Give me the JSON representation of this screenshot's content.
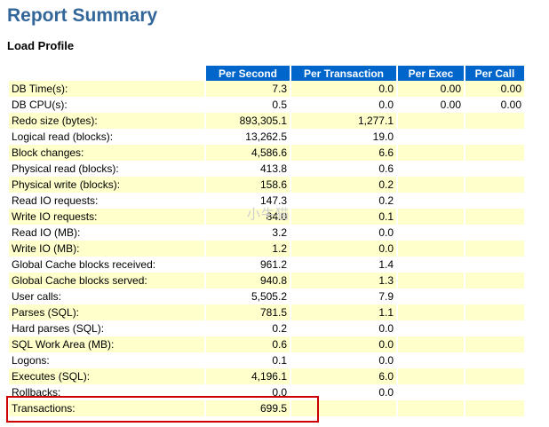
{
  "title": "Report Summary",
  "section": "Load Profile",
  "columns": [
    "Per Second",
    "Per Transaction",
    "Per Exec",
    "Per Call"
  ],
  "rows": [
    {
      "label": "DB Time(s):",
      "per_second": "7.3",
      "per_txn": "0.0",
      "per_exec": "0.00",
      "per_call": "0.00"
    },
    {
      "label": "DB CPU(s):",
      "per_second": "0.5",
      "per_txn": "0.0",
      "per_exec": "0.00",
      "per_call": "0.00"
    },
    {
      "label": "Redo size (bytes):",
      "per_second": "893,305.1",
      "per_txn": "1,277.1",
      "per_exec": "",
      "per_call": ""
    },
    {
      "label": "Logical read (blocks):",
      "per_second": "13,262.5",
      "per_txn": "19.0",
      "per_exec": "",
      "per_call": ""
    },
    {
      "label": "Block changes:",
      "per_second": "4,586.6",
      "per_txn": "6.6",
      "per_exec": "",
      "per_call": ""
    },
    {
      "label": "Physical read (blocks):",
      "per_second": "413.8",
      "per_txn": "0.6",
      "per_exec": "",
      "per_call": ""
    },
    {
      "label": "Physical write (blocks):",
      "per_second": "158.6",
      "per_txn": "0.2",
      "per_exec": "",
      "per_call": ""
    },
    {
      "label": "Read IO requests:",
      "per_second": "147.3",
      "per_txn": "0.2",
      "per_exec": "",
      "per_call": ""
    },
    {
      "label": "Write IO requests:",
      "per_second": "84.0",
      "per_txn": "0.1",
      "per_exec": "",
      "per_call": ""
    },
    {
      "label": "Read IO (MB):",
      "per_second": "3.2",
      "per_txn": "0.0",
      "per_exec": "",
      "per_call": ""
    },
    {
      "label": "Write IO (MB):",
      "per_second": "1.2",
      "per_txn": "0.0",
      "per_exec": "",
      "per_call": ""
    },
    {
      "label": "Global Cache blocks received:",
      "per_second": "961.2",
      "per_txn": "1.4",
      "per_exec": "",
      "per_call": ""
    },
    {
      "label": "Global Cache blocks served:",
      "per_second": "940.8",
      "per_txn": "1.3",
      "per_exec": "",
      "per_call": ""
    },
    {
      "label": "User calls:",
      "per_second": "5,505.2",
      "per_txn": "7.9",
      "per_exec": "",
      "per_call": ""
    },
    {
      "label": "Parses (SQL):",
      "per_second": "781.5",
      "per_txn": "1.1",
      "per_exec": "",
      "per_call": ""
    },
    {
      "label": "Hard parses (SQL):",
      "per_second": "0.2",
      "per_txn": "0.0",
      "per_exec": "",
      "per_call": ""
    },
    {
      "label": "SQL Work Area (MB):",
      "per_second": "0.6",
      "per_txn": "0.0",
      "per_exec": "",
      "per_call": ""
    },
    {
      "label": "Logons:",
      "per_second": "0.1",
      "per_txn": "0.0",
      "per_exec": "",
      "per_call": ""
    },
    {
      "label": "Executes (SQL):",
      "per_second": "4,196.1",
      "per_txn": "6.0",
      "per_exec": "",
      "per_call": ""
    },
    {
      "label": "Rollbacks:",
      "per_second": "0.0",
      "per_txn": "0.0",
      "per_exec": "",
      "per_call": ""
    },
    {
      "label": "Transactions:",
      "per_second": "699.5",
      "per_txn": "",
      "per_exec": "",
      "per_call": ""
    }
  ],
  "watermark": "小牛猫",
  "highlight_color": "#cc0000"
}
